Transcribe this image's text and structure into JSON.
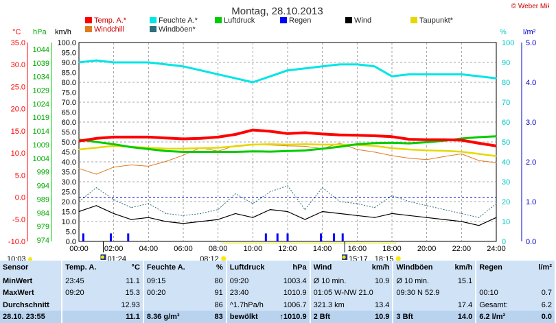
{
  "header": {
    "title": "Montag, 28.10.2013",
    "copyright": "© Weber Mike"
  },
  "legend": [
    {
      "label": "Temp. A.*",
      "color": "#ff0000"
    },
    {
      "label": "Feuchte A.*",
      "color": "#00e5e5"
    },
    {
      "label": "Luftdruck",
      "color": "#00cc00"
    },
    {
      "label": "Regen",
      "color": "#0000ff"
    },
    {
      "label": "Wind",
      "color": "#000000"
    },
    {
      "label": "Taupunkt*",
      "color": "#e6d800"
    },
    {
      "label": "Windchill",
      "color": "#e07b20"
    },
    {
      "label": "Windböen*",
      "color": "#2e6e7a"
    }
  ],
  "axes": {
    "unit_temp": "°C",
    "unit_pressure": "hPa",
    "unit_wind": "km/h",
    "unit_humidity": "%",
    "unit_rain": "l/m²",
    "temp_ticks": [
      "35.0",
      "30.0",
      "25.0",
      "20.0",
      "15.0",
      "10.0",
      "5.0",
      "0.0",
      "-5.0",
      "-10.0"
    ],
    "pressure_ticks": [
      "1044",
      "1039",
      "1034",
      "1029",
      "1024",
      "1019",
      "1014",
      "1009",
      "1004",
      "999",
      "994",
      "989",
      "984",
      "979",
      "974"
    ],
    "wind_ticks": [
      "100.0",
      "95.0",
      "90.0",
      "85.0",
      "80.0",
      "75.0",
      "70.0",
      "65.0",
      "60.0",
      "55.0",
      "50.0",
      "45.0",
      "40.0",
      "35.0",
      "30.0",
      "25.0",
      "20.0",
      "15.0",
      "10.0",
      "5.0",
      "0.0"
    ],
    "humidity_ticks": [
      "100",
      "90",
      "80",
      "70",
      "60",
      "50",
      "40",
      "30",
      "20",
      "10",
      "0"
    ],
    "rain_ticks": [
      "5.0",
      "4.0",
      "3.0",
      "2.0",
      "1.0",
      "0.0"
    ],
    "time_ticks": [
      "00:00",
      "02:00",
      "04:00",
      "06:00",
      "08:00",
      "10:00",
      "12:00",
      "14:00",
      "16:00",
      "18:00",
      "20:00",
      "22:00",
      "24:00"
    ]
  },
  "sun_moon": {
    "sunrise": "08:12",
    "sunset": "18:15",
    "moonrise": "01:24",
    "moonset": "15:17",
    "moon_extra": "10:03"
  },
  "chart_data": {
    "type": "line",
    "title": "Montag, 28.10.2013",
    "x": [
      "00:00",
      "01:00",
      "02:00",
      "03:00",
      "04:00",
      "05:00",
      "06:00",
      "07:00",
      "08:00",
      "09:00",
      "10:00",
      "11:00",
      "12:00",
      "13:00",
      "14:00",
      "15:00",
      "16:00",
      "17:00",
      "18:00",
      "19:00",
      "20:00",
      "21:00",
      "22:00",
      "23:00",
      "24:00"
    ],
    "series": [
      {
        "name": "Temp. A.*",
        "unit": "°C",
        "color": "#ff0000",
        "values": [
          12.7,
          13.3,
          13.6,
          13.6,
          13.6,
          13.4,
          13.2,
          13.3,
          13.6,
          14.2,
          15.2,
          14.9,
          14.4,
          14.6,
          14.3,
          14.1,
          14.0,
          13.9,
          13.7,
          13.1,
          13.0,
          13.0,
          12.9,
          12.2,
          11.6
        ]
      },
      {
        "name": "Feuchte A.*",
        "unit": "%",
        "color": "#00e5e5",
        "values": [
          90,
          91,
          90,
          90,
          90,
          89,
          88,
          86,
          84,
          82,
          80,
          83,
          86,
          87,
          88,
          89,
          89,
          88,
          83,
          84,
          84,
          84,
          84,
          83,
          82
        ]
      },
      {
        "name": "Luftdruck",
        "unit": "hPa",
        "color": "#00cc00",
        "values": [
          1009.8,
          1009.0,
          1008.2,
          1007.2,
          1006.5,
          1005.8,
          1005.5,
          1005.5,
          1005.5,
          1005.5,
          1005.7,
          1005.6,
          1005.8,
          1006.0,
          1006.6,
          1007.3,
          1008.2,
          1008.6,
          1008.7,
          1008.5,
          1008.9,
          1009.4,
          1010.2,
          1010.7,
          1011.0
        ]
      },
      {
        "name": "Regen",
        "unit": "l/m²",
        "color": "#0000ff",
        "type": "bar",
        "values_at": [
          [
            "00:15",
            0.2
          ],
          [
            "01:50",
            0.2
          ],
          [
            "02:50",
            0.2
          ],
          [
            "10:45",
            0.2
          ],
          [
            "11:25",
            0.2
          ],
          [
            "12:00",
            0.2
          ],
          [
            "13:55",
            0.2
          ],
          [
            "14:40",
            0.2
          ],
          [
            "15:10",
            0.2
          ]
        ]
      },
      {
        "name": "Wind",
        "unit": "km/h",
        "color": "#000000",
        "values": [
          15,
          18,
          14,
          11,
          12,
          10,
          9,
          10,
          11,
          14,
          12,
          16,
          15,
          11,
          15,
          14,
          13,
          12,
          14,
          13,
          12,
          11,
          10,
          8,
          12
        ]
      },
      {
        "name": "Taupunkt*",
        "unit": "°C",
        "color": "#e6d800",
        "values": [
          10.8,
          11.2,
          11.6,
          11.4,
          11.2,
          11.0,
          11.0,
          11.1,
          11.2,
          11.5,
          11.9,
          12.0,
          11.9,
          12.0,
          11.9,
          11.9,
          11.8,
          11.6,
          11.1,
          10.8,
          10.6,
          10.5,
          10.3,
          9.8,
          9.3
        ]
      },
      {
        "name": "Windchill",
        "unit": "°C",
        "color": "#e07b20",
        "values": [
          6.5,
          5.2,
          6.8,
          7.3,
          7.0,
          8.1,
          9.5,
          11.2,
          10.4,
          11.7,
          12.0,
          11.8,
          11.6,
          11.5,
          11.0,
          12.2,
          10.8,
          10.2,
          9.4,
          8.8,
          8.5,
          9.2,
          9.8,
          8.3,
          7.8
        ]
      },
      {
        "name": "Windböen*",
        "unit": "km/h",
        "color": "#2e6e7a",
        "values": [
          20,
          27,
          21,
          17,
          19,
          14,
          13,
          14,
          16,
          24,
          19,
          25,
          28,
          16,
          27,
          20,
          19,
          17,
          23,
          20,
          18,
          16,
          14,
          12,
          19
        ]
      }
    ],
    "xlabel": "",
    "ylabel": "",
    "ylim_temp": [
      -10,
      35
    ],
    "ylim_pressure": [
      974,
      1044
    ],
    "ylim_wind": [
      0,
      100
    ],
    "ylim_humidity": [
      0,
      100
    ],
    "ylim_rain": [
      0,
      5
    ],
    "grid": true
  },
  "stats": {
    "headers": [
      {
        "name": "Sensor",
        "unit": ""
      },
      {
        "name": "Temp. A.",
        "unit": "°C"
      },
      {
        "name": "Feuchte A.",
        "unit": "%"
      },
      {
        "name": "Luftdruck",
        "unit": "hPa"
      },
      {
        "name": "Wind",
        "unit": "km/h"
      },
      {
        "name": "Windböen",
        "unit": "km/h"
      },
      {
        "name": "Regen",
        "unit": "l/m²"
      }
    ],
    "rows": [
      {
        "label": "MinWert",
        "cells": [
          [
            "23:45",
            "11.1"
          ],
          [
            "09:15",
            "80"
          ],
          [
            "09:20",
            "1003.4"
          ],
          [
            "Ø 10 min.",
            "10.9"
          ],
          [
            "Ø 10 min.",
            "15.1"
          ],
          [
            "",
            ""
          ]
        ]
      },
      {
        "label": "MaxWert",
        "cells": [
          [
            "09:20",
            "15.3"
          ],
          [
            "00:20",
            "91"
          ],
          [
            "23:40",
            "1010.9"
          ],
          [
            "01:05  W-NW 21.0",
            ""
          ],
          [
            "09:30  N 52.9",
            ""
          ],
          [
            "00:10",
            "0.7"
          ]
        ]
      },
      {
        "label": "Durchschnitt",
        "cells": [
          [
            "",
            "12.93"
          ],
          [
            "",
            "86"
          ],
          [
            "^1.7hPa/h",
            "1006.7"
          ],
          [
            "321.3 km",
            "13.4"
          ],
          [
            "",
            "17.4"
          ],
          [
            "Gesamt:",
            "6.2"
          ]
        ]
      },
      {
        "label": "28.10. 23:55",
        "cells": [
          [
            "",
            "11.1"
          ],
          [
            "8.36 g/m³",
            "83"
          ],
          [
            "bewölkt",
            "↑1010.9"
          ],
          [
            "2 Bft",
            "10.9"
          ],
          [
            "3 Bft",
            "14.0"
          ],
          [
            "6.2 l/m²",
            "0.0"
          ]
        ]
      }
    ]
  }
}
